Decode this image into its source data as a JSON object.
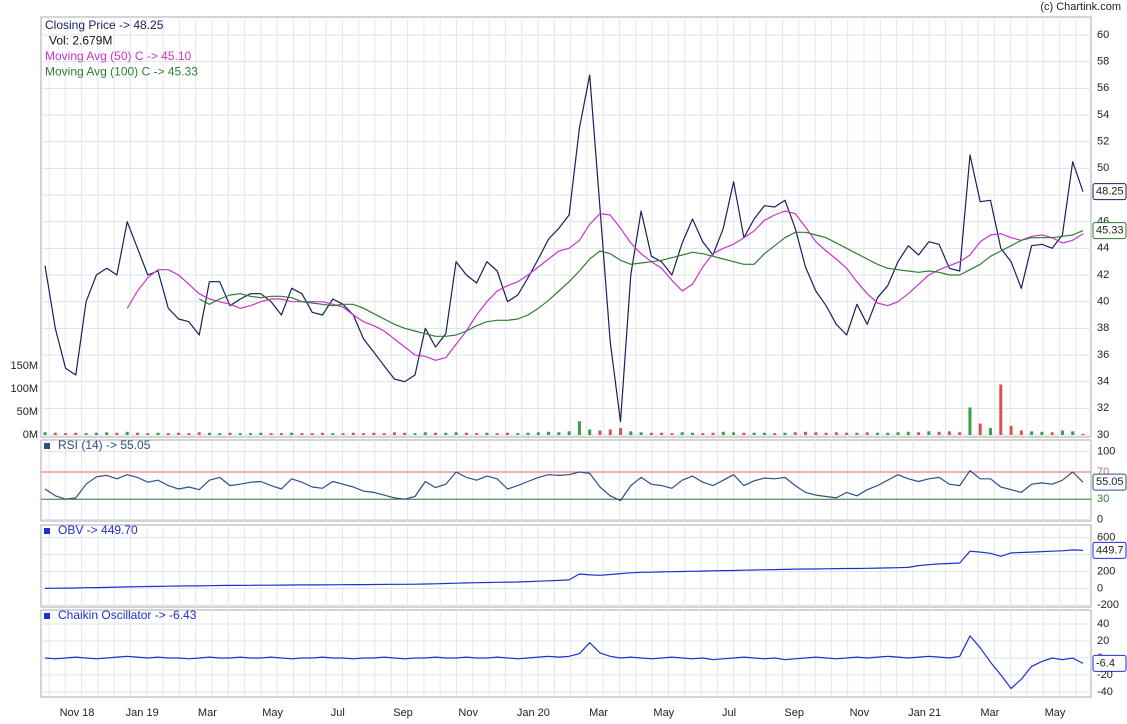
{
  "chart_data": [
    {
      "type": "line",
      "credit": "(c) Chartink.com",
      "ylim": [
        29.85,
        61.35
      ],
      "yticks": [
        30,
        32,
        34,
        36,
        38,
        40,
        42,
        44,
        46,
        48,
        50,
        52,
        54,
        56,
        58,
        60
      ],
      "y2lim": [
        -4.3,
        909
      ],
      "y2ticks": [
        {
          "value": 0,
          "label": "0M"
        },
        {
          "value": 50,
          "label": "50M"
        },
        {
          "value": 100,
          "label": "100M"
        },
        {
          "value": 150,
          "label": "150M"
        }
      ],
      "grid": true,
      "series": [
        {
          "name": "Closing Price -> 48.25",
          "color": "#1b1f5c",
          "last_label": "48.25",
          "values": [
            42.7,
            38,
            35,
            34.5,
            40,
            42,
            42.5,
            42,
            46,
            44,
            42,
            42.3,
            39.5,
            38.7,
            38.5,
            37.5,
            41.5,
            41.5,
            39.7,
            40.2,
            40.6,
            40.6,
            40,
            39,
            41,
            40.6,
            39.2,
            39,
            40.2,
            39.8,
            39,
            37.2,
            36.2,
            35.2,
            34.2,
            34,
            34.5,
            38,
            36.6,
            37.6,
            43,
            42,
            41.4,
            43,
            42.3,
            40,
            40.5,
            41.8,
            43.2,
            44.7,
            45.5,
            46.5,
            53,
            57,
            47,
            37,
            31,
            42,
            46.8,
            43.4,
            43,
            42,
            44.4,
            46.2,
            44.5,
            43.5,
            45.5,
            49,
            44.8,
            46.2,
            47.2,
            47.1,
            47.6,
            45.5,
            42.6,
            40.8,
            39.7,
            38.3,
            37.5,
            39.8,
            38.3,
            40.3,
            41.2,
            43,
            44.2,
            43.5,
            44.5,
            44.3,
            42.5,
            42.3,
            51,
            47.5,
            47.6,
            44,
            43,
            41,
            44.2,
            44.3,
            44,
            45,
            50.5,
            48.25
          ]
        },
        {
          "name": "Vol: 2.679M",
          "color": "#111111",
          "type": "bar",
          "axis": "y2",
          "up_color": "#3a9d4a",
          "down_color": "#d9534f",
          "values": [
            6,
            5,
            4,
            5,
            4,
            5,
            6,
            5,
            7,
            5,
            4,
            5,
            4,
            5,
            4,
            6,
            5,
            4,
            5,
            4,
            4,
            5,
            4,
            4,
            5,
            4,
            4,
            5,
            4,
            4,
            5,
            4,
            5,
            4,
            6,
            5,
            4,
            6,
            5,
            5,
            6,
            5,
            4,
            5,
            4,
            5,
            4,
            5,
            6,
            7,
            6,
            8,
            30,
            12,
            10,
            12,
            15,
            8,
            6,
            5,
            5,
            4,
            6,
            5,
            4,
            5,
            7,
            6,
            5,
            5,
            5,
            4,
            5,
            6,
            7,
            6,
            5,
            6,
            5,
            5,
            6,
            5,
            5,
            6,
            7,
            6,
            8,
            7,
            8,
            6,
            60,
            25,
            15,
            110,
            20,
            10,
            8,
            7,
            6,
            10,
            8,
            2.679
          ]
        },
        {
          "name": "Moving Avg (50) C -> 45.10",
          "color": "#cc33cc",
          "values": [
            null,
            null,
            null,
            null,
            null,
            null,
            null,
            null,
            39.5,
            40.8,
            41.8,
            42.4,
            42.4,
            42,
            41.3,
            40.6,
            40.2,
            40,
            39.8,
            39.5,
            39.7,
            40,
            40.2,
            40.2,
            40,
            40,
            40,
            40,
            39.8,
            39.6,
            39,
            38.5,
            38.2,
            37.8,
            37.2,
            36.6,
            36,
            35.9,
            35.6,
            35.8,
            36.8,
            37.8,
            39,
            40,
            40.8,
            41.2,
            41.5,
            42,
            42.6,
            43.2,
            43.8,
            44,
            44.6,
            45.8,
            46.6,
            46.5,
            45.5,
            44.4,
            43.6,
            43,
            42.5,
            41.6,
            40.8,
            41.3,
            42.6,
            43.6,
            44,
            44.3,
            44.8,
            45.3,
            46.1,
            46.5,
            46.8,
            46.6,
            45.6,
            44.5,
            43.8,
            43.2,
            42.5,
            41.5,
            40.6,
            39.9,
            39.7,
            40,
            40.6,
            41.3,
            42,
            42.4,
            42.7,
            43,
            43.5,
            44.5,
            45,
            45.1,
            44.8,
            44.6,
            44.9,
            45,
            44.8,
            44.4,
            44.6,
            45.1
          ]
        },
        {
          "name": "Moving Avg (100) C -> 45.33",
          "color": "#2e7d32",
          "last_label": "45.33",
          "values": [
            null,
            null,
            null,
            null,
            null,
            null,
            null,
            null,
            null,
            null,
            null,
            null,
            null,
            null,
            null,
            40.2,
            39.8,
            40.2,
            40.5,
            40.6,
            40.4,
            40.3,
            40.4,
            40.4,
            40.3,
            40,
            39.9,
            39.8,
            39.7,
            39.8,
            39.8,
            39.5,
            39.1,
            38.7,
            38.3,
            38,
            37.8,
            37.6,
            37.4,
            37.4,
            37.5,
            37.8,
            38.2,
            38.5,
            38.6,
            38.6,
            38.7,
            39,
            39.5,
            40.1,
            40.8,
            41.5,
            42.3,
            43.2,
            43.8,
            43.6,
            43.1,
            42.8,
            42.9,
            43,
            43.1,
            43.3,
            43.5,
            43.7,
            43.6,
            43.4,
            43.2,
            43,
            42.8,
            42.8,
            43.6,
            44.2,
            44.8,
            45.2,
            45.2,
            45,
            44.8,
            44.4,
            44,
            43.6,
            43.2,
            42.8,
            42.5,
            42.4,
            42.3,
            42.2,
            42.3,
            42.2,
            42,
            42,
            42.4,
            42.8,
            43.4,
            43.8,
            44.2,
            44.6,
            44.8,
            44.8,
            44.8,
            44.9,
            45,
            45.33
          ]
        }
      ]
    },
    {
      "type": "line",
      "ylim": [
        -2,
        117
      ],
      "yticks": [
        0,
        30,
        70,
        100
      ],
      "grid": true,
      "levels": [
        {
          "value": 70,
          "color": "#e06666"
        },
        {
          "value": 30,
          "color": "#2e7d32"
        }
      ],
      "series": [
        {
          "name": "RSI (14) -> 55.05",
          "color": "#2f4f8a",
          "last_label": "55.05",
          "values": [
            45,
            35,
            30,
            32,
            52,
            63,
            65,
            60,
            66,
            62,
            55,
            58,
            50,
            45,
            48,
            44,
            58,
            62,
            50,
            52,
            55,
            56,
            50,
            45,
            60,
            55,
            48,
            46,
            56,
            52,
            48,
            42,
            40,
            36,
            32,
            30,
            34,
            56,
            47,
            52,
            70,
            62,
            58,
            64,
            60,
            45,
            50,
            56,
            62,
            66,
            65,
            66,
            70,
            68,
            48,
            35,
            28,
            50,
            62,
            52,
            50,
            46,
            58,
            64,
            55,
            50,
            58,
            66,
            50,
            57,
            61,
            60,
            62,
            50,
            40,
            36,
            34,
            32,
            40,
            35,
            44,
            50,
            58,
            66,
            60,
            56,
            60,
            62,
            52,
            50,
            72,
            60,
            60,
            48,
            44,
            40,
            52,
            54,
            52,
            58,
            70,
            55.05
          ]
        }
      ]
    },
    {
      "type": "line",
      "ylim": [
        -220,
        750
      ],
      "yticks": [
        -200,
        0,
        200,
        400,
        600
      ],
      "grid": true,
      "series": [
        {
          "name": "OBV -> 449.70",
          "color": "#1f2fd0",
          "last_label": "449.7",
          "values": [
            0,
            2,
            4,
            5,
            8,
            10,
            12,
            15,
            18,
            20,
            22,
            24,
            26,
            28,
            30,
            30,
            32,
            34,
            35,
            36,
            37,
            38,
            38,
            39,
            40,
            41,
            42,
            42,
            43,
            44,
            45,
            45,
            46,
            47,
            48,
            49,
            50,
            52,
            55,
            58,
            62,
            65,
            68,
            70,
            72,
            74,
            76,
            80,
            85,
            90,
            95,
            100,
            170,
            160,
            155,
            165,
            175,
            185,
            190,
            192,
            195,
            198,
            200,
            202,
            205,
            208,
            210,
            212,
            215,
            218,
            220,
            222,
            225,
            228,
            230,
            230,
            232,
            234,
            235,
            236,
            238,
            240,
            242,
            245,
            248,
            270,
            280,
            290,
            295,
            300,
            440,
            430,
            415,
            380,
            420,
            425,
            430,
            435,
            440,
            445,
            455,
            449.7
          ]
        }
      ]
    },
    {
      "type": "line",
      "ylim": [
        -46,
        56.5
      ],
      "yticks": [
        -40,
        -20,
        0,
        20,
        40
      ],
      "grid": true,
      "xtick_labels": [
        "Nov 18",
        "Jan 19",
        "Mar",
        "May",
        "Jul",
        "Sep",
        "Nov",
        "Jan 20",
        "Mar",
        "May",
        "Jul",
        "Sep",
        "Nov",
        "Jan 21",
        "Mar",
        "May"
      ],
      "series": [
        {
          "name": "Chaikin Oscillator -> -6.43",
          "color": "#1f2fd0",
          "last_label": "-6.4",
          "values": [
            0,
            -1,
            0,
            1,
            0,
            -1,
            0,
            1,
            2,
            1,
            0,
            1,
            0,
            0,
            -1,
            0,
            1,
            0,
            0,
            1,
            0,
            0,
            1,
            0,
            -1,
            0,
            0,
            1,
            0,
            0,
            -1,
            0,
            0,
            1,
            0,
            -1,
            0,
            0,
            1,
            0,
            0,
            1,
            0,
            0,
            1,
            0,
            -1,
            0,
            1,
            2,
            1,
            2,
            5,
            18,
            6,
            2,
            0,
            1,
            0,
            -1,
            0,
            1,
            0,
            -1,
            0,
            -2,
            -1,
            0,
            1,
            0,
            -1,
            0,
            -2,
            -1,
            0,
            1,
            0,
            -1,
            0,
            1,
            0,
            1,
            2,
            1,
            0,
            1,
            2,
            1,
            0,
            2,
            26,
            12,
            -5,
            -20,
            -36,
            -25,
            -10,
            -4,
            0,
            -2,
            0,
            -6.43
          ]
        }
      ]
    }
  ]
}
